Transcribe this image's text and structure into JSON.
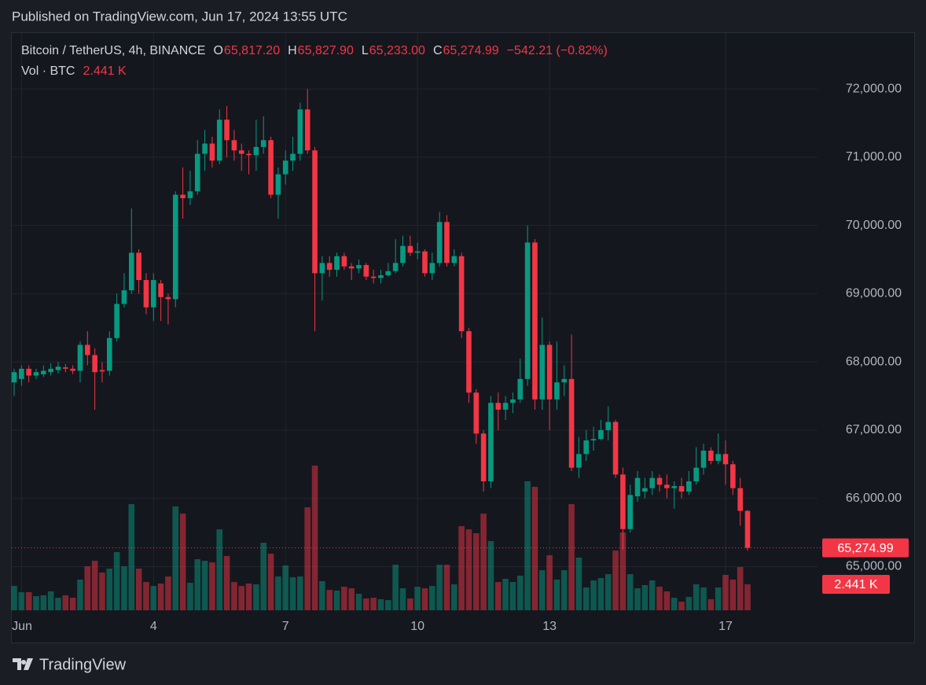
{
  "header": {
    "published": "Published on TradingView.com, Jun 17, 2024 13:55 UTC"
  },
  "chart_data": {
    "type": "candlestick",
    "symbol": "Bitcoin / TetherUS, 4h, BINANCE",
    "ohlc_legend": [
      {
        "key": "O",
        "value": "65,817.20"
      },
      {
        "key": "H",
        "value": "65,827.90"
      },
      {
        "key": "L",
        "value": "65,233.00"
      },
      {
        "key": "C",
        "value": "65,274.99"
      }
    ],
    "change": "−542.21 (−0.82%)",
    "volume_legend": "Vol · BTC",
    "volume_legend_value": "2.441 K",
    "last_close_label": "65,274.99",
    "last_volume_label": "2.441 K",
    "up_color": "#089981",
    "down_color": "#f23645",
    "ylim": [
      64360,
      72820
    ],
    "yticks": [
      {
        "value": 65000,
        "label": "65,000.00"
      },
      {
        "value": 66000,
        "label": "66,000.00"
      },
      {
        "value": 67000,
        "label": "67,000.00"
      },
      {
        "value": 68000,
        "label": "68,000.00"
      },
      {
        "value": 69000,
        "label": "69,000.00"
      },
      {
        "value": 70000,
        "label": "70,000.00"
      },
      {
        "value": 71000,
        "label": "71,000.00"
      },
      {
        "value": 72000,
        "label": "72,000.00"
      }
    ],
    "grid": true,
    "categories": [
      null,
      "Jun",
      null,
      null,
      null,
      null,
      null,
      null,
      null,
      null,
      null,
      null,
      null,
      null,
      null,
      null,
      null,
      null,
      null,
      "4",
      null,
      null,
      null,
      null,
      null,
      null,
      null,
      null,
      null,
      null,
      null,
      null,
      null,
      null,
      null,
      null,
      null,
      "7",
      null,
      null,
      null,
      null,
      null,
      null,
      null,
      null,
      null,
      null,
      null,
      null,
      null,
      null,
      null,
      null,
      null,
      "10",
      null,
      null,
      null,
      null,
      null,
      null,
      null,
      null,
      null,
      null,
      null,
      null,
      null,
      null,
      null,
      null,
      null,
      "13",
      null,
      null,
      null,
      null,
      null,
      null,
      null,
      null,
      null,
      null,
      null,
      null,
      null,
      null,
      null,
      null,
      null,
      null,
      null,
      null,
      null,
      null,
      null,
      "17",
      null,
      null,
      null
    ],
    "open": [
      67700,
      67750,
      67900,
      67800,
      67820,
      67850,
      67880,
      67920,
      67900,
      67870,
      68250,
      68100,
      67880,
      67870,
      68350,
      68850,
      69050,
      69600,
      69200,
      68800,
      69150,
      68950,
      68920,
      70450,
      70400,
      70500,
      71050,
      71200,
      70950,
      71550,
      71250,
      71100,
      71050,
      71030,
      71150,
      71250,
      70450,
      70750,
      70950,
      71050,
      71700,
      71100,
      69300,
      69450,
      69350,
      69550,
      69400,
      69370,
      69420,
      69250,
      69230,
      69270,
      69330,
      69450,
      69700,
      69600,
      69620,
      69300,
      69450,
      70050,
      69450,
      69550,
      68450,
      67550,
      66950,
      66250,
      67400,
      67300,
      67400,
      67450,
      67750,
      69750,
      67450,
      68250,
      67450,
      67700,
      67750,
      66450,
      66650,
      66850,
      66870,
      67000,
      67120,
      66350,
      65550,
      66030,
      66100,
      66150,
      66300,
      66200,
      66150,
      66180,
      66100,
      66250,
      66450,
      66700,
      66550,
      66650,
      66500,
      66150,
      65817.2
    ],
    "high": [
      67900,
      67950,
      67950,
      67900,
      67950,
      67980,
      68000,
      67970,
      67950,
      68300,
      68450,
      68200,
      68000,
      68450,
      69000,
      69300,
      70250,
      69650,
      69300,
      69300,
      69200,
      69000,
      70500,
      70850,
      70800,
      71250,
      71400,
      71300,
      71700,
      71750,
      71400,
      71200,
      71100,
      71550,
      71600,
      71300,
      70850,
      71100,
      71300,
      71800,
      72000,
      71150,
      69550,
      69550,
      69600,
      69600,
      69450,
      69500,
      69450,
      69350,
      69350,
      69450,
      69800,
      69850,
      69850,
      69750,
      69650,
      69600,
      70200,
      70150,
      69650,
      69600,
      68500,
      67600,
      67000,
      67500,
      67550,
      67500,
      67550,
      68050,
      70000,
      69800,
      68650,
      68300,
      68300,
      67950,
      68400,
      66900,
      67000,
      67050,
      67150,
      67350,
      67150,
      66450,
      66200,
      66400,
      66300,
      66400,
      66350,
      66350,
      66250,
      66300,
      66400,
      66750,
      66800,
      66750,
      66950,
      66850,
      66550,
      66300,
      65827.9
    ],
    "low": [
      67500,
      67650,
      67700,
      67750,
      67780,
      67800,
      67830,
      67850,
      67820,
      67700,
      67950,
      67300,
      67700,
      67800,
      68300,
      68800,
      69000,
      69000,
      68700,
      68600,
      68600,
      68550,
      68800,
      70100,
      70300,
      70450,
      70800,
      70850,
      70900,
      71000,
      70950,
      70800,
      70750,
      70800,
      71050,
      70400,
      70100,
      70600,
      70800,
      70950,
      71050,
      68450,
      68900,
      69250,
      69250,
      69350,
      69200,
      69300,
      69200,
      69150,
      69150,
      69250,
      69300,
      69400,
      69550,
      69500,
      69250,
      69200,
      69400,
      69400,
      69400,
      68350,
      67400,
      66800,
      66100,
      66150,
      67000,
      67150,
      67250,
      67400,
      67650,
      67300,
      67300,
      67000,
      67300,
      67500,
      66400,
      66300,
      66550,
      66700,
      66850,
      66850,
      66300,
      65250,
      65500,
      65950,
      66000,
      66050,
      66100,
      66000,
      65850,
      66000,
      66050,
      66200,
      66350,
      66500,
      66500,
      66200,
      66050,
      65600,
      65233
    ],
    "close": [
      67850,
      67900,
      67800,
      67850,
      67870,
      67900,
      67930,
      67900,
      67870,
      68250,
      68100,
      67850,
      67860,
      68350,
      68850,
      69050,
      69600,
      69200,
      68800,
      69200,
      68950,
      68920,
      70450,
      70400,
      70500,
      71050,
      71200,
      70950,
      71550,
      71250,
      71100,
      71050,
      71030,
      71150,
      71250,
      70450,
      70750,
      70950,
      71050,
      71700,
      71100,
      69300,
      69450,
      69350,
      69550,
      69400,
      69370,
      69420,
      69250,
      69230,
      69270,
      69330,
      69450,
      69700,
      69600,
      69620,
      69300,
      69450,
      70050,
      69450,
      69550,
      68450,
      67550,
      66950,
      66250,
      67400,
      67300,
      67400,
      67450,
      67750,
      69750,
      67450,
      68250,
      67450,
      67700,
      67750,
      66450,
      66650,
      66850,
      66870,
      67000,
      67120,
      66350,
      65550,
      66050,
      66300,
      66150,
      66300,
      66200,
      66150,
      66180,
      66100,
      66250,
      66450,
      66700,
      66550,
      66650,
      66500,
      66150,
      65817.2,
      65274.99
    ],
    "volume": [
      2290,
      1700,
      1700,
      1330,
      1410,
      1780,
      1180,
      1410,
      1180,
      2890,
      4140,
      4660,
      3550,
      3920,
      5480,
      4140,
      9990,
      3920,
      2660,
      2290,
      2520,
      3180,
      9770,
      9100,
      2590,
      4810,
      4660,
      4510,
      7620,
      5110,
      2660,
      2290,
      2520,
      2440,
      6360,
      5330,
      3180,
      4220,
      3110,
      3180,
      9690,
      13620,
      2740,
      1920,
      1850,
      2220,
      2070,
      1550,
      1110,
      1180,
      1040,
      960,
      4290,
      2070,
      1110,
      2220,
      2070,
      2290,
      4290,
      4290,
      2440,
      7920,
      7620,
      7250,
      9100,
      6510,
      2660,
      2960,
      2660,
      3260,
      12140,
      11620,
      3770,
      5180,
      2890,
      3770,
      9990,
      4960,
      2150,
      2810,
      3030,
      3400,
      5620,
      7330,
      3400,
      2070,
      2370,
      2810,
      2220,
      1780,
      1180,
      810,
      1260,
      2440,
      2150,
      1040,
      2150,
      3330,
      2890,
      4070,
      2441
    ]
  },
  "footer": {
    "brand": "TradingView"
  }
}
